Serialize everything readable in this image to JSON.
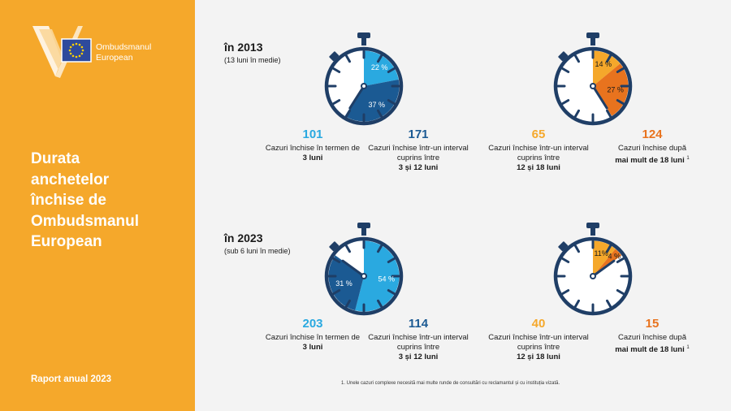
{
  "colors": {
    "sidebar": "#F5A82B",
    "navy": "#1F3E66",
    "light_blue": "#2AA9E0",
    "dark_blue": "#1B5A93",
    "yellow": "#F5A82B",
    "orange": "#E8731E"
  },
  "logo": {
    "icon": "ombudsman-eu-flag-logo",
    "line1": "Ombudsmanul",
    "line2": "European"
  },
  "sidebar": {
    "title_lines": [
      "Durata",
      "anchetelor",
      "închise de",
      "Ombudsmanul",
      "European"
    ],
    "footer": "Raport anual 2023"
  },
  "section_2013": {
    "heading": "în 2013",
    "subheading": "(13 luni în medie)",
    "watch_a": {
      "segments": [
        {
          "label": "22 %",
          "percent": 22,
          "color": "#2AA9E0"
        },
        {
          "label": "37 %",
          "percent": 37,
          "color": "#1B5A93"
        }
      ]
    },
    "watch_b": {
      "segments": [
        {
          "label": "14 %",
          "percent": 14,
          "color": "#F5A82B"
        },
        {
          "label": "27 %",
          "percent": 27,
          "color": "#E8731E"
        }
      ]
    },
    "stats": [
      {
        "number": "101",
        "line1": "Cazuri închise în termen de",
        "line2": "3 luni",
        "sup": ""
      },
      {
        "number": "171",
        "line1": "Cazuri închise într-un interval cuprins între",
        "line2": "3 și 12 luni",
        "sup": ""
      },
      {
        "number": "65",
        "line1": "Cazuri închise într-un interval cuprins între",
        "line2": "12 și 18 luni",
        "sup": ""
      },
      {
        "number": "124",
        "line1": "Cazuri închise după",
        "line2": "mai mult de 18 luni",
        "sup": "1"
      }
    ]
  },
  "section_2023": {
    "heading": "în 2023",
    "subheading": "(sub 6 luni în medie)",
    "watch_a": {
      "segments": [
        {
          "label": "54 %",
          "percent": 54,
          "color": "#2AA9E0"
        },
        {
          "label": "31 %",
          "percent": 31,
          "color": "#1B5A93"
        }
      ]
    },
    "watch_b": {
      "segments": [
        {
          "label": "11%",
          "percent": 11,
          "color": "#F5A82B"
        },
        {
          "label": "4 %",
          "percent": 4,
          "color": "#E8731E"
        }
      ]
    },
    "stats": [
      {
        "number": "203",
        "line1": "Cazuri închise în termen de",
        "line2": "3 luni",
        "sup": ""
      },
      {
        "number": "114",
        "line1": "Cazuri închise într-un interval cuprins între",
        "line2": "3 și 12 luni",
        "sup": ""
      },
      {
        "number": "40",
        "line1": "Cazuri închise într-un interval cuprins între",
        "line2": "12 și 18 luni",
        "sup": ""
      },
      {
        "number": "15",
        "line1": "Cazuri închise după",
        "line2": "mai mult de 18 luni",
        "sup": "1"
      }
    ]
  },
  "footnote": "1. Unele cazuri complexe necesită mai multe runde de consultări cu reclamantul și cu instituția vizată."
}
